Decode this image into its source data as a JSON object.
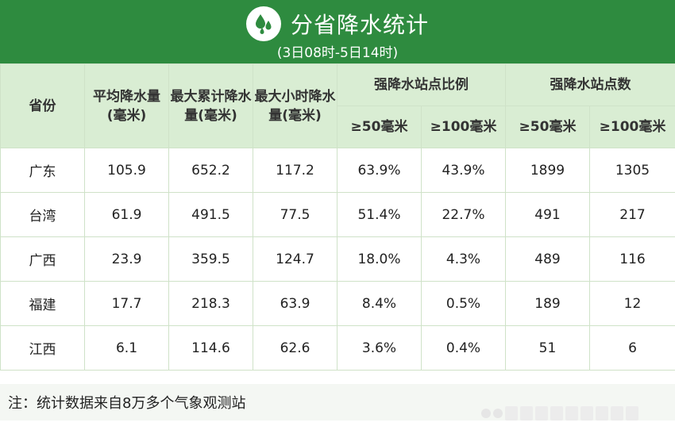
{
  "header": {
    "title": "分省降水统计",
    "subtitle": "(3日08时-5日14时)",
    "logo_icon": "raindrops-icon",
    "background_color": "#2e8b3f"
  },
  "table": {
    "headers": {
      "province": "省份",
      "avg": "平均降水量(毫米)",
      "max_cum": "最大累计降水量(毫米)",
      "max_hourly": "最大小时降水量(毫米)",
      "ratio_group": "强降水站点比例",
      "count_group": "强降水站点数",
      "ge50": "≥50毫米",
      "ge100": "≥100毫米"
    },
    "rows": [
      {
        "province": "广东",
        "avg": "105.9",
        "max_cum": "652.2",
        "max_hourly": "117.2",
        "ratio50": "63.9%",
        "ratio100": "43.9%",
        "count50": "1899",
        "count100": "1305"
      },
      {
        "province": "台湾",
        "avg": "61.9",
        "max_cum": "491.5",
        "max_hourly": "77.5",
        "ratio50": "51.4%",
        "ratio100": "22.7%",
        "count50": "491",
        "count100": "217"
      },
      {
        "province": "广西",
        "avg": "23.9",
        "max_cum": "359.5",
        "max_hourly": "124.7",
        "ratio50": "18.0%",
        "ratio100": "4.3%",
        "count50": "489",
        "count100": "116"
      },
      {
        "province": "福建",
        "avg": "17.7",
        "max_cum": "218.3",
        "max_hourly": "63.9",
        "ratio50": "8.4%",
        "ratio100": "0.5%",
        "count50": "189",
        "count100": "12"
      },
      {
        "province": "江西",
        "avg": "6.1",
        "max_cum": "114.6",
        "max_hourly": "62.6",
        "ratio50": "3.6%",
        "ratio100": "0.4%",
        "count50": "51",
        "count100": "6"
      }
    ]
  },
  "footer": {
    "note": "注：统计数据来自8万多个气象观测站"
  }
}
